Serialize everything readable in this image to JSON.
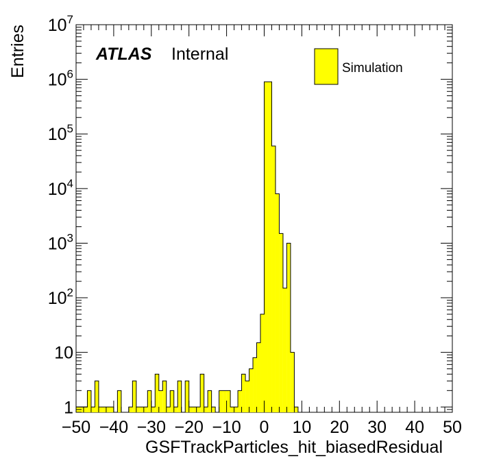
{
  "chart_data": {
    "type": "bar",
    "histogram": true,
    "log_y": true,
    "xlabel": "GSFTrackParticles_hit_biasedResidual",
    "ylabel": "Entries",
    "xlim": [
      -50,
      50
    ],
    "ylim": [
      0.8,
      10000000
    ],
    "x_ticks": [
      "−50",
      "−40",
      "−30",
      "−20",
      "−10",
      "0",
      "10",
      "20",
      "30",
      "40",
      "50"
    ],
    "y_ticks": [
      "1",
      "10",
      "10^2",
      "10^3",
      "10^4",
      "10^5",
      "10^6",
      "10^7"
    ],
    "bin_width": 1,
    "x": [
      -50,
      -49,
      -48,
      -47,
      -46,
      -45,
      -44,
      -43,
      -42,
      -41,
      -40,
      -39,
      -38,
      -37,
      -36,
      -35,
      -34,
      -33,
      -32,
      -31,
      -30,
      -29,
      -28,
      -27,
      -26,
      -25,
      -24,
      -23,
      -22,
      -21,
      -20,
      -19,
      -18,
      -17,
      -16,
      -15,
      -14,
      -13,
      -12,
      -11,
      -10,
      -9,
      -8,
      -7,
      -6,
      -5,
      -4,
      -3,
      -2,
      -1,
      0,
      1,
      2,
      3,
      4,
      5,
      6,
      7,
      8,
      9,
      10,
      11,
      12,
      13,
      14,
      15,
      16,
      17,
      18,
      19,
      20,
      21,
      22,
      23,
      24,
      25,
      26,
      27,
      28,
      29,
      30,
      31,
      32,
      33,
      34,
      35,
      36,
      37,
      38,
      39,
      40,
      41,
      42,
      43,
      44,
      45,
      46,
      47,
      48,
      49
    ],
    "values": [
      1,
      1,
      1,
      2,
      1,
      3,
      1,
      1,
      1,
      1,
      0,
      2,
      0,
      0,
      1,
      3,
      1,
      1,
      1,
      2,
      1,
      4,
      2,
      3,
      1,
      2,
      1,
      3,
      0,
      3,
      1,
      1,
      1,
      4,
      1,
      2,
      1,
      0,
      2,
      2,
      2,
      1,
      1,
      2,
      4,
      3,
      5,
      8,
      15,
      50,
      900000,
      900000,
      60000,
      8000,
      1500,
      150,
      1000,
      10,
      1,
      0,
      0,
      0,
      0,
      0,
      0,
      0,
      0,
      0,
      0,
      0,
      0,
      0,
      0,
      0,
      0,
      0,
      0,
      0,
      0,
      0,
      0,
      0,
      0,
      0,
      0,
      0,
      0,
      0,
      0,
      0,
      0,
      0,
      0,
      0,
      0,
      0,
      0,
      0,
      0,
      0
    ],
    "series": [
      {
        "name": "Simulation",
        "color": "#ffff00"
      }
    ],
    "legend_position": "top-right",
    "atlas_label": {
      "bold": "ATLAS",
      "text": "Internal"
    }
  }
}
